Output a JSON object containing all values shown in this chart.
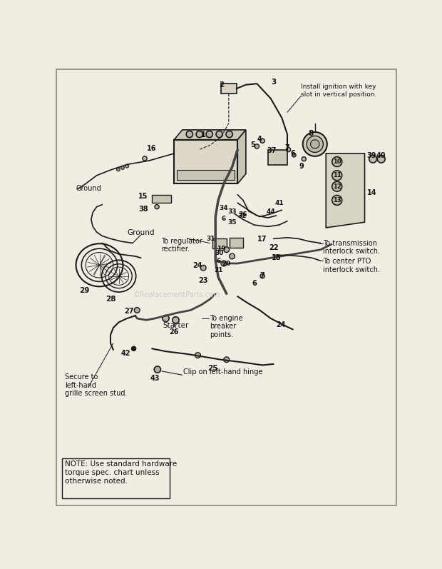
{
  "bg_color": "#f2ede3",
  "line_color": "#1a1a1a",
  "text_color": "#111111",
  "note_text": "NOTE: Use standard hardware\ntorque spec. chart unless\notherwise noted.",
  "ignition_note": "Install ignition with key\nslot in vertical position.",
  "transmission_note": "To transmission\ninterlock switch.",
  "pto_note": "To center PTO\ninterlock switch.",
  "regulator_note": "To regulator\nrectifier.",
  "engine_note": "To engine\nbreaker\npoints.",
  "clip_note": "Clip on left-hand hinge",
  "secure_note": "Secure to\nleft-hand\ngrille screen stud.",
  "ground_label1": "Ground",
  "ground_label2": "Ground",
  "starter_label": "Starter",
  "watermark": "©ReplacementParts.com"
}
